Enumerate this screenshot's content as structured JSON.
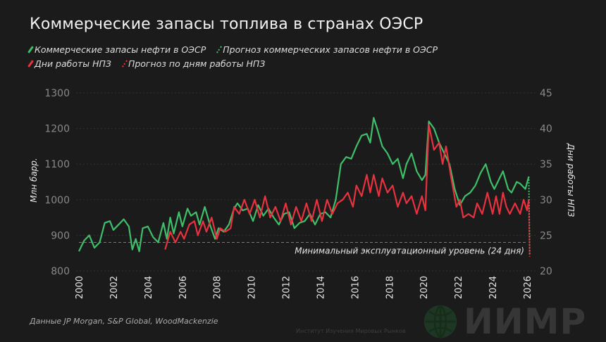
{
  "title": "Коммерческие запасы топлива в странах ОЭСР",
  "legend": [
    {
      "label": "Коммерческие запасы нефти в ОЭСР",
      "color": "#3fbf6a",
      "style": "solid"
    },
    {
      "label": "Прогноз коммерческих запасов нефти в ОЭСР",
      "color": "#3fbf6a",
      "style": "dotted"
    },
    {
      "label": "Дни работы НПЗ",
      "color": "#e8323f",
      "style": "solid"
    },
    {
      "label": "Прогноз по дням работы НПЗ",
      "color": "#e8323f",
      "style": "dotted"
    }
  ],
  "source": "Данные JP Morgan, S&P Global, WoodMackenzie",
  "logo": {
    "name": "ИИМР",
    "subtitle": "Институт Изучения Мировых Рынков"
  },
  "chart_data": {
    "type": "line",
    "ylabel_left": "Млн барр.",
    "ylabel_right": "Дни работы НПЗ",
    "ylim_left": [
      800,
      1300
    ],
    "ylim_right": [
      20,
      45
    ],
    "xlim": [
      2000,
      2026.5
    ],
    "x_ticks": [
      "2000",
      "2002",
      "2004",
      "2006",
      "2008",
      "2010",
      "2012",
      "2014",
      "2016",
      "2018",
      "2020",
      "2022",
      "2024",
      "2026"
    ],
    "y_ticks_left": [
      "800",
      "900",
      "1000",
      "1100",
      "1200",
      "1300"
    ],
    "y_ticks_right": [
      "20",
      "25",
      "30",
      "35",
      "40",
      "45"
    ],
    "grid": true,
    "annotation": {
      "label": "Минимальный эксплуатационный уровень (24 дня)",
      "value_right": 24
    },
    "series": [
      {
        "name": "Коммерческие запасы нефти в ОЭСР",
        "axis": "left",
        "color": "#3fbf6a",
        "x": [
          2000.0,
          2000.3,
          2000.6,
          2000.9,
          2001.2,
          2001.5,
          2001.8,
          2002.0,
          2002.3,
          2002.6,
          2002.9,
          2003.1,
          2003.3,
          2003.5,
          2003.7,
          2004.0,
          2004.3,
          2004.6,
          2004.9,
          2005.1,
          2005.3,
          2005.5,
          2005.8,
          2006.0,
          2006.3,
          2006.5,
          2006.8,
          2007.0,
          2007.3,
          2007.6,
          2007.9,
          2008.1,
          2008.4,
          2008.7,
          2009.0,
          2009.2,
          2009.5,
          2009.8,
          2010.1,
          2010.4,
          2010.7,
          2011.0,
          2011.3,
          2011.6,
          2011.9,
          2012.2,
          2012.5,
          2012.8,
          2013.1,
          2013.4,
          2013.7,
          2014.0,
          2014.3,
          2014.6,
          2014.9,
          2015.2,
          2015.5,
          2015.8,
          2016.1,
          2016.4,
          2016.7,
          2016.9,
          2017.1,
          2017.3,
          2017.6,
          2017.9,
          2018.2,
          2018.5,
          2018.8,
          2019.0,
          2019.3,
          2019.6,
          2019.9,
          2020.1,
          2020.3,
          2020.6,
          2020.9,
          2021.2,
          2021.5,
          2021.8,
          2022.1,
          2022.4,
          2022.7,
          2023.0,
          2023.3,
          2023.6,
          2023.9,
          2024.1,
          2024.4,
          2024.6,
          2024.9,
          2025.1,
          2025.4,
          2025.6,
          2025.9,
          2026.1
        ],
        "values": [
          855,
          885,
          900,
          865,
          880,
          935,
          940,
          915,
          930,
          945,
          925,
          860,
          890,
          855,
          920,
          925,
          895,
          880,
          935,
          890,
          950,
          905,
          965,
          925,
          975,
          955,
          965,
          930,
          980,
          930,
          890,
          920,
          910,
          930,
          975,
          990,
          970,
          975,
          940,
          985,
          955,
          975,
          950,
          930,
          960,
          965,
          920,
          935,
          940,
          960,
          930,
          960,
          965,
          950,
          1000,
          1100,
          1120,
          1115,
          1150,
          1180,
          1185,
          1160,
          1230,
          1200,
          1150,
          1130,
          1100,
          1115,
          1060,
          1100,
          1130,
          1080,
          1055,
          1070,
          1220,
          1200,
          1160,
          1130,
          1100,
          1030,
          985,
          1010,
          1020,
          1040,
          1075,
          1100,
          1050,
          1030,
          1060,
          1080,
          1030,
          1020,
          1050,
          1045,
          1030,
          1065
        ]
      },
      {
        "name": "Прогноз коммерческих запасов нефти в ОЭСР",
        "axis": "left",
        "color": "#3fbf6a",
        "dotted": true,
        "x": [
          2026.1,
          2026.15
        ],
        "values": [
          1065,
          845
        ]
      },
      {
        "name": "Дни работы НПЗ",
        "axis": "right",
        "color": "#e8323f",
        "x": [
          2005.0,
          2005.3,
          2005.6,
          2005.9,
          2006.1,
          2006.4,
          2006.7,
          2006.9,
          2007.2,
          2007.4,
          2007.7,
          2008.0,
          2008.2,
          2008.5,
          2008.8,
          2009.0,
          2009.3,
          2009.6,
          2009.9,
          2010.2,
          2010.5,
          2010.8,
          2011.1,
          2011.4,
          2011.7,
          2012.0,
          2012.3,
          2012.6,
          2012.9,
          2013.2,
          2013.5,
          2013.8,
          2014.1,
          2014.4,
          2014.7,
          2015.0,
          2015.3,
          2015.6,
          2015.9,
          2016.1,
          2016.4,
          2016.7,
          2016.9,
          2017.1,
          2017.4,
          2017.6,
          2017.9,
          2018.2,
          2018.5,
          2018.8,
          2019.0,
          2019.3,
          2019.6,
          2019.9,
          2020.1,
          2020.3,
          2020.6,
          2020.9,
          2021.1,
          2021.3,
          2021.6,
          2021.9,
          2022.1,
          2022.3,
          2022.6,
          2022.9,
          2023.1,
          2023.4,
          2023.7,
          2024.0,
          2024.2,
          2024.4,
          2024.6,
          2024.8,
          2025.0,
          2025.3,
          2025.6,
          2025.8,
          2026.0,
          2026.1
        ],
        "values": [
          23,
          25.5,
          24,
          25.5,
          24.5,
          26.5,
          27,
          25,
          27,
          25.5,
          27.5,
          24.5,
          26,
          25.5,
          26,
          29,
          28,
          30,
          28,
          30,
          27.5,
          30.5,
          27.5,
          29,
          27,
          29.5,
          26.5,
          29,
          27,
          29.5,
          27,
          30,
          27,
          30,
          28,
          29.5,
          30,
          31,
          29,
          32,
          30.5,
          33.5,
          31,
          33.5,
          30.5,
          33,
          31,
          32,
          29,
          31,
          29.5,
          30.5,
          28,
          30.5,
          28.5,
          40.5,
          37,
          38,
          35,
          37.5,
          33,
          29,
          30,
          27.5,
          28,
          27.5,
          29.5,
          28,
          31,
          28,
          30.5,
          28,
          31,
          29,
          28,
          29.5,
          28,
          30,
          28.5,
          30
        ]
      },
      {
        "name": "Прогноз по дням работы НПЗ",
        "axis": "right",
        "color": "#e8323f",
        "dotted": true,
        "x": [
          2026.1,
          2026.15
        ],
        "values": [
          30,
          22
        ]
      }
    ]
  }
}
